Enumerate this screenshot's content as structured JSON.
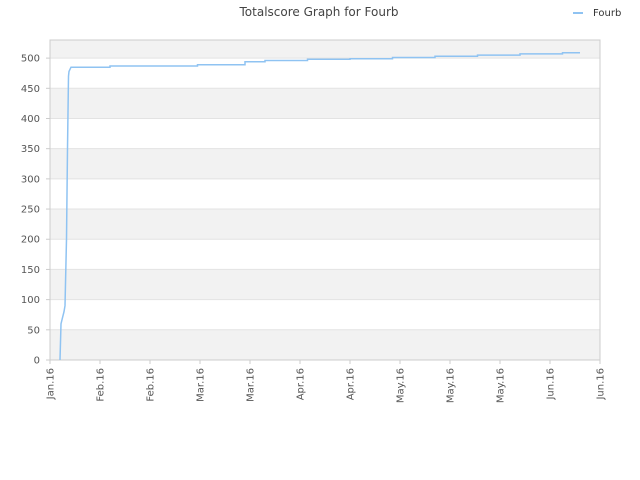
{
  "chart_data": {
    "type": "line",
    "title": "Totalscore Graph for Fourb",
    "legend": {
      "label": "Fourb",
      "position": "top-right"
    },
    "colors": {
      "line": "#8fc3f2",
      "band": "#f2f2f2",
      "grid": "#e3e3e3",
      "axis": "#cccccc"
    },
    "grid": true,
    "ylim": [
      0,
      530
    ],
    "y_ticks": [
      0,
      50,
      100,
      150,
      200,
      250,
      300,
      350,
      400,
      450,
      500
    ],
    "x_ticks": [
      "Jan.16",
      "Feb.16",
      "Feb.16",
      "Mar.16",
      "Mar.16",
      "Apr.16",
      "Apr.16",
      "May.16",
      "May.16",
      "May.16",
      "Jun.16",
      "Jun.16"
    ],
    "xlim": [
      0,
      11
    ],
    "series": [
      {
        "name": "Fourb",
        "points": [
          [
            0.2,
            0
          ],
          [
            0.22,
            60
          ],
          [
            0.25,
            70
          ],
          [
            0.28,
            80
          ],
          [
            0.3,
            90
          ],
          [
            0.33,
            200
          ],
          [
            0.35,
            350
          ],
          [
            0.37,
            470
          ],
          [
            0.38,
            478
          ],
          [
            0.42,
            485
          ],
          [
            1.2,
            485
          ],
          [
            1.2,
            487
          ],
          [
            2.95,
            487
          ],
          [
            2.95,
            489
          ],
          [
            3.9,
            489
          ],
          [
            3.9,
            494
          ],
          [
            4.3,
            494
          ],
          [
            4.3,
            496
          ],
          [
            5.15,
            496
          ],
          [
            5.15,
            498
          ],
          [
            6.0,
            498
          ],
          [
            6.0,
            499
          ],
          [
            6.85,
            499
          ],
          [
            6.85,
            501
          ],
          [
            7.7,
            501
          ],
          [
            7.7,
            503
          ],
          [
            8.55,
            503
          ],
          [
            8.55,
            505
          ],
          [
            9.4,
            505
          ],
          [
            9.4,
            507
          ],
          [
            10.25,
            507
          ],
          [
            10.25,
            509
          ],
          [
            10.6,
            509
          ]
        ]
      }
    ]
  }
}
